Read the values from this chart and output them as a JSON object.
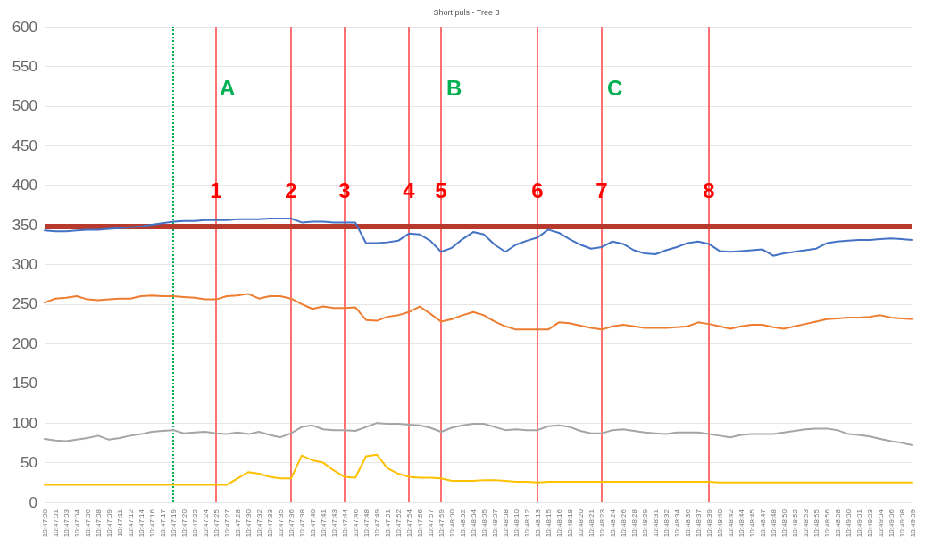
{
  "chart_data": {
    "type": "line",
    "title": "Short puls - Tree 3",
    "categories": [
      "10:47:00",
      "10:47:01",
      "10:47:03",
      "10:47:04",
      "10:47:06",
      "10:47:08",
      "10:47:09",
      "10:47:11",
      "10:47:12",
      "10:47:14",
      "10:47:16",
      "10:47:17",
      "10:47:19",
      "10:47:20",
      "10:47:22",
      "10:47:24",
      "10:47:25",
      "10:47:27",
      "10:47:28",
      "10:47:30",
      "10:47:32",
      "10:47:33",
      "10:47:35",
      "10:47:36",
      "10:47:38",
      "10:47:40",
      "10:47:41",
      "10:47:43",
      "10:47:44",
      "10:47:46",
      "10:47:48",
      "10:47:49",
      "10:47:51",
      "10:47:52",
      "10:47:54",
      "10:47:56",
      "10:47:57",
      "10:47:59",
      "10:48:00",
      "10:48:02",
      "10:48:04",
      "10:48:05",
      "10:48:07",
      "10:48:08",
      "10:48:10",
      "10:48:12",
      "10:48:13",
      "10:48:15",
      "10:48:16",
      "10:48:18",
      "10:48:20",
      "10:48:21",
      "10:48:23",
      "10:48:24",
      "10:48:26",
      "10:48:28",
      "10:48:29",
      "10:48:31",
      "10:48:32",
      "10:48:34",
      "10:48:36",
      "10:48:37",
      "10:48:39",
      "10:48:40",
      "10:48:42",
      "10:48:44",
      "10:48:45",
      "10:48:47",
      "10:48:48",
      "10:48:50",
      "10:48:52",
      "10:48:53",
      "10:48:55",
      "10:48:56",
      "10:48:58",
      "10:49:00",
      "10:49:01",
      "10:49:03",
      "10:49:04",
      "10:49:06",
      "10:49:08",
      "10:49:09"
    ],
    "series": [
      {
        "color": "#4472c4",
        "values": [
          343,
          342,
          342,
          343,
          344,
          344,
          345,
          346,
          347,
          348,
          350,
          352,
          354,
          355,
          355,
          356,
          356,
          356,
          357,
          357,
          357,
          358,
          358,
          358,
          353,
          354,
          354,
          353,
          353,
          353,
          327,
          327,
          328,
          330,
          339,
          338,
          330,
          316,
          321,
          332,
          341,
          338,
          325,
          316,
          325,
          330,
          334,
          344,
          340,
          332,
          325,
          320,
          322,
          329,
          326,
          318,
          314,
          313,
          318,
          322,
          327,
          329,
          326,
          317,
          316,
          317,
          318,
          319,
          311,
          314,
          316,
          318,
          320,
          327,
          329,
          330,
          331,
          331,
          332,
          333,
          332,
          331
        ]
      },
      {
        "color": "#ed7d31",
        "values": [
          252,
          257,
          258,
          260,
          256,
          255,
          256,
          257,
          257,
          260,
          261,
          260,
          260,
          259,
          258,
          256,
          256,
          260,
          261,
          263,
          257,
          260,
          260,
          257,
          250,
          244,
          247,
          245,
          245,
          246,
          230,
          229,
          234,
          236,
          240,
          247,
          238,
          228,
          231,
          236,
          240,
          236,
          228,
          222,
          218,
          218,
          218,
          218,
          227,
          226,
          223,
          220,
          218,
          222,
          224,
          222,
          220,
          220,
          220,
          221,
          222,
          227,
          225,
          222,
          219,
          222,
          224,
          224,
          221,
          219,
          222,
          225,
          228,
          231,
          232,
          233,
          233,
          234,
          236,
          233,
          232,
          231
        ]
      },
      {
        "color": "#a5a5a5",
        "values": [
          80,
          78,
          77,
          79,
          81,
          84,
          79,
          81,
          84,
          86,
          89,
          90,
          91,
          87,
          88,
          89,
          87,
          86,
          88,
          86,
          89,
          85,
          82,
          87,
          95,
          97,
          92,
          91,
          91,
          90,
          95,
          100,
          99,
          99,
          98,
          97,
          94,
          89,
          94,
          97,
          99,
          99,
          95,
          91,
          92,
          91,
          91,
          96,
          97,
          95,
          90,
          87,
          87,
          91,
          92,
          90,
          88,
          87,
          86,
          88,
          88,
          88,
          86,
          84,
          82,
          85,
          86,
          86,
          86,
          88,
          90,
          92,
          93,
          93,
          91,
          86,
          85,
          83,
          80,
          77,
          75,
          72
        ]
      },
      {
        "color": "#ffc000",
        "values": [
          22,
          22,
          22,
          22,
          22,
          22,
          22,
          22,
          22,
          22,
          22,
          22,
          22,
          22,
          22,
          22,
          22,
          22,
          30,
          38,
          36,
          32,
          30,
          30,
          59,
          53,
          50,
          40,
          32,
          31,
          58,
          60,
          43,
          36,
          32,
          31,
          31,
          30,
          27,
          27,
          27,
          28,
          28,
          27,
          26,
          26,
          25,
          26,
          26,
          26,
          26,
          26,
          26,
          26,
          26,
          26,
          26,
          26,
          26,
          26,
          26,
          26,
          26,
          25,
          25,
          25,
          25,
          25,
          25,
          25,
          25,
          25,
          25,
          25,
          25,
          25,
          25,
          25,
          25,
          25,
          25,
          25
        ]
      }
    ],
    "ylim": [
      0,
      600
    ],
    "yticks": [
      0,
      50,
      100,
      150,
      200,
      250,
      300,
      350,
      400,
      450,
      500,
      550,
      600
    ],
    "grid": "y",
    "marker": "none",
    "line_style": "solid",
    "ref_lines": [
      {
        "axis": "y",
        "value": 348,
        "label": null,
        "color": "#b83a2c"
      },
      {
        "axis": "x",
        "value": "10:47:19",
        "label": null,
        "color": "#00b050",
        "line_style": "dotted"
      },
      {
        "axis": "x",
        "value": "10:47:25",
        "label": "1",
        "color": "#ff7070"
      },
      {
        "axis": "x",
        "value": "10:47:36",
        "label": "2",
        "color": "#ff7070"
      },
      {
        "axis": "x",
        "value": "10:47:44",
        "label": "3",
        "color": "#ff7070"
      },
      {
        "axis": "x",
        "value": "10:47:54",
        "label": "4",
        "color": "#ff7070"
      },
      {
        "axis": "x",
        "value": "10:47:59",
        "label": "5",
        "color": "#ff7070"
      },
      {
        "axis": "x",
        "value": "10:48:13",
        "label": "6",
        "color": "#ff7070"
      },
      {
        "axis": "x",
        "value": "10:48:23",
        "label": "7",
        "color": "#ff7070"
      },
      {
        "axis": "x",
        "value": "10:48:39",
        "label": "8",
        "color": "#ff7070"
      }
    ],
    "annotations": [
      "A",
      "B",
      "C"
    ]
  }
}
